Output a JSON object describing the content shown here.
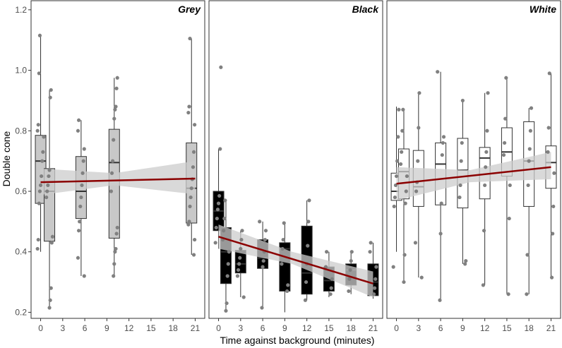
{
  "chart_data": {
    "type": "box-faceted",
    "xlabel": "Time against background (minutes)",
    "ylabel": "Double cone",
    "ylim": [
      0.18,
      1.23
    ],
    "xlim": [
      -1.3,
      22.3
    ],
    "yticks": [
      0.2,
      0.4,
      0.6,
      0.8,
      1.0,
      1.2
    ],
    "ytick_labels": [
      "0.2",
      "0.4",
      "0.6",
      "0.8",
      "1.0",
      "1.2"
    ],
    "xticks": [
      0,
      3,
      6,
      9,
      12,
      15,
      18,
      21
    ],
    "xtick_labels": [
      "0",
      "3",
      "6",
      "9",
      "12",
      "15",
      "18",
      "21"
    ],
    "colors": {
      "panel_border": "#333333",
      "point": "#808080",
      "trend": "#8b0000",
      "ci_band": "#cccccc",
      "whisker": "#333333",
      "median": "#333333"
    },
    "panels": [
      {
        "title": "Grey",
        "fill": "#c8c8c8",
        "trend": {
          "x0": 0,
          "y0": 0.63,
          "x1": 21,
          "y1": 0.642
        },
        "ci": {
          "upper": [
            [
              0,
              0.675
            ],
            [
              10,
              0.66
            ],
            [
              21,
              0.7
            ]
          ],
          "lower": [
            [
              21,
              0.59
            ],
            [
              10,
              0.62
            ],
            [
              0,
              0.588
            ]
          ]
        },
        "boxes": [
          {
            "x": 0,
            "q1": 0.56,
            "median": 0.7,
            "q3": 0.785,
            "low": 0.4,
            "high": 1.115,
            "points": [
              0.41,
              0.44,
              0.56,
              0.6,
              0.62,
              0.65,
              0.7,
              0.73,
              0.78,
              0.8,
              0.82,
              0.99,
              1.115
            ]
          },
          {
            "x": 1.2,
            "q1": 0.435,
            "median": 0.6,
            "q3": 0.675,
            "low": 0.21,
            "high": 0.935,
            "points": [
              0.215,
              0.24,
              0.28,
              0.43,
              0.45,
              0.58,
              0.6,
              0.62,
              0.65,
              0.67,
              0.91,
              0.935
            ]
          },
          {
            "x": 5.5,
            "q1": 0.51,
            "median": 0.6,
            "q3": 0.715,
            "low": 0.32,
            "high": 0.835,
            "points": [
              0.32,
              0.38,
              0.47,
              0.5,
              0.55,
              0.58,
              0.62,
              0.66,
              0.7,
              0.74,
              0.8,
              0.835
            ]
          },
          {
            "x": 10,
            "q1": 0.445,
            "median": 0.695,
            "q3": 0.805,
            "low": 0.32,
            "high": 0.975,
            "points": [
              0.32,
              0.36,
              0.4,
              0.41,
              0.46,
              0.48,
              0.6,
              0.66,
              0.7,
              0.77,
              0.84,
              0.87,
              0.88,
              0.94,
              0.975
            ]
          },
          {
            "x": 20.5,
            "q1": 0.495,
            "median": 0.61,
            "q3": 0.76,
            "low": 0.39,
            "high": 1.105,
            "points": [
              0.39,
              0.44,
              0.49,
              0.5,
              0.55,
              0.58,
              0.61,
              0.64,
              0.68,
              0.73,
              0.82,
              0.86,
              0.88,
              1.105
            ]
          }
        ]
      },
      {
        "title": "Black",
        "fill": "#000000",
        "trend": {
          "x0": 0,
          "y0": 0.45,
          "x1": 21,
          "y1": 0.295
        },
        "ci": {
          "upper": [
            [
              0,
              0.49
            ],
            [
              10,
              0.4
            ],
            [
              21,
              0.335
            ]
          ],
          "lower": [
            [
              21,
              0.25
            ],
            [
              10,
              0.36
            ],
            [
              0,
              0.41
            ]
          ]
        },
        "boxes": [
          {
            "x": 0,
            "q1": 0.47,
            "median": 0.535,
            "q3": 0.6,
            "low": 0.41,
            "high": 0.74,
            "points": [
              0.43,
              0.48,
              0.51,
              0.54,
              0.56,
              0.585,
              0.74,
              1.01
            ]
          },
          {
            "x": 1,
            "q1": 0.295,
            "median": 0.4,
            "q3": 0.48,
            "low": 0.205,
            "high": 0.57,
            "points": [
              0.205,
              0.23,
              0.32,
              0.36,
              0.4,
              0.44,
              0.47,
              0.51,
              0.57
            ]
          },
          {
            "x": 3,
            "q1": 0.33,
            "median": 0.36,
            "q3": 0.405,
            "low": 0.25,
            "high": 0.47,
            "points": [
              0.25,
              0.32,
              0.34,
              0.36,
              0.38,
              0.41,
              0.44,
              0.47
            ]
          },
          {
            "x": 6,
            "q1": 0.345,
            "median": 0.38,
            "q3": 0.44,
            "low": 0.215,
            "high": 0.5,
            "points": [
              0.215,
              0.35,
              0.37,
              0.4,
              0.44,
              0.47,
              0.5
            ]
          },
          {
            "x": 9,
            "q1": 0.27,
            "median": 0.41,
            "q3": 0.43,
            "low": 0.2,
            "high": 0.495,
            "points": [
              0.27,
              0.29,
              0.36,
              0.41,
              0.44,
              0.495
            ]
          },
          {
            "x": 12,
            "q1": 0.26,
            "median": 0.33,
            "q3": 0.485,
            "low": 0.24,
            "high": 0.57,
            "points": [
              0.24,
              0.3,
              0.36,
              0.42,
              0.5,
              0.57
            ]
          },
          {
            "x": 15,
            "q1": 0.27,
            "median": 0.305,
            "q3": 0.35,
            "low": 0.25,
            "high": 0.4,
            "points": [
              0.26,
              0.28,
              0.31,
              0.35,
              0.4
            ]
          },
          {
            "x": 18,
            "q1": 0.29,
            "median": 0.34,
            "q3": 0.36,
            "low": 0.26,
            "high": 0.4,
            "points": [
              0.27,
              0.31,
              0.34,
              0.37,
              0.4
            ]
          },
          {
            "x": 21,
            "q1": 0.255,
            "median": 0.3,
            "q3": 0.36,
            "low": 0.245,
            "high": 0.43,
            "points": [
              0.26,
              0.28,
              0.31,
              0.35,
              0.4,
              0.43
            ]
          }
        ]
      },
      {
        "title": "White",
        "fill": "#ffffff",
        "trend": {
          "x0": 0,
          "y0": 0.625,
          "x1": 21,
          "y1": 0.68
        },
        "ci": {
          "upper": [
            [
              0,
              0.68
            ],
            [
              10,
              0.67
            ],
            [
              21,
              0.73
            ]
          ],
          "lower": [
            [
              21,
              0.64
            ],
            [
              10,
              0.63
            ],
            [
              0,
              0.57
            ]
          ]
        },
        "boxes": [
          {
            "x": 0,
            "q1": 0.57,
            "median": 0.6,
            "q3": 0.66,
            "low": 0.4,
            "high": 0.88,
            "points": [
              0.35,
              0.55,
              0.58,
              0.62,
              0.65,
              0.7,
              0.78,
              0.87
            ]
          },
          {
            "x": 1,
            "q1": 0.575,
            "median": 0.665,
            "q3": 0.74,
            "low": 0.3,
            "high": 0.87,
            "points": [
              0.3,
              0.39,
              0.56,
              0.6,
              0.65,
              0.69,
              0.73,
              0.8,
              0.87
            ]
          },
          {
            "x": 3,
            "q1": 0.55,
            "median": 0.615,
            "q3": 0.735,
            "low": 0.315,
            "high": 0.925,
            "points": [
              0.315,
              0.43,
              0.6,
              0.63,
              0.7,
              0.81,
              0.925
            ]
          },
          {
            "x": 6,
            "q1": 0.555,
            "median": 0.69,
            "q3": 0.76,
            "low": 0.24,
            "high": 0.995,
            "points": [
              0.24,
              0.46,
              0.56,
              0.72,
              0.76,
              0.78,
              0.995
            ]
          },
          {
            "x": 9,
            "q1": 0.545,
            "median": 0.67,
            "q3": 0.775,
            "low": 0.36,
            "high": 0.9,
            "points": [
              0.36,
              0.37,
              0.58,
              0.62,
              0.7,
              0.76,
              0.9
            ]
          },
          {
            "x": 12,
            "q1": 0.575,
            "median": 0.71,
            "q3": 0.745,
            "low": 0.29,
            "high": 0.925,
            "points": [
              0.29,
              0.47,
              0.62,
              0.68,
              0.73,
              0.8,
              0.925
            ]
          },
          {
            "x": 15,
            "q1": 0.65,
            "median": 0.73,
            "q3": 0.81,
            "low": 0.26,
            "high": 0.975,
            "points": [
              0.26,
              0.51,
              0.62,
              0.72,
              0.76,
              0.84,
              0.975
            ]
          },
          {
            "x": 18,
            "q1": 0.55,
            "median": 0.7,
            "q3": 0.83,
            "low": 0.26,
            "high": 0.875,
            "points": [
              0.26,
              0.39,
              0.62,
              0.7,
              0.74,
              0.8,
              0.875
            ]
          },
          {
            "x": 21,
            "q1": 0.61,
            "median": 0.695,
            "q3": 0.75,
            "low": 0.315,
            "high": 0.99,
            "points": [
              0.315,
              0.46,
              0.55,
              0.66,
              0.73,
              0.81,
              0.99
            ]
          }
        ]
      }
    ]
  }
}
